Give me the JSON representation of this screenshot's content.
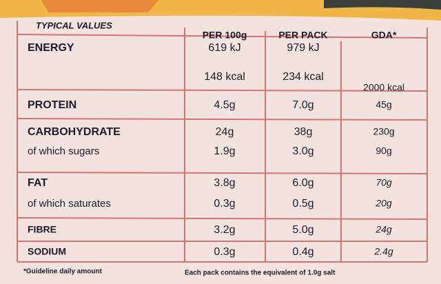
{
  "table": {
    "header": [
      "TYPICAL VALUES",
      "PER 100g",
      "PER PACK",
      "GDA*"
    ],
    "rows": [
      [
        [
          "ENERGY"
        ],
        [
          "619 kJ",
          "148 kcal"
        ],
        [
          "979 kJ",
          "234 kcal"
        ],
        [
          "2000 kcal"
        ]
      ],
      [
        [
          "PROTEIN"
        ],
        [
          "4.5g"
        ],
        [
          "7.0g"
        ],
        [
          "45g"
        ]
      ],
      [
        [
          "CARBOHYDRATE",
          "of which sugars"
        ],
        [
          "24g",
          "1.9g"
        ],
        [
          "38g",
          "3.0g"
        ],
        [
          "230g",
          "90g"
        ]
      ],
      [
        [
          "FAT",
          "of which saturates"
        ],
        [
          "3.8g",
          "0.3g"
        ],
        [
          "6.0g",
          "0.5g"
        ],
        [
          "70g",
          "20g"
        ]
      ],
      [
        [
          "FIBRE"
        ],
        [
          "3.2g"
        ],
        [
          "5.0g"
        ],
        [
          "24g"
        ]
      ],
      [
        [
          "SODIUM"
        ],
        [
          "0.3g"
        ],
        [
          "0.4g"
        ],
        [
          "2.4g"
        ]
      ]
    ],
    "footnotes": [
      "*Guideline daily amount",
      "Each pack contains the equivalent of 1.0g salt"
    ]
  }
}
